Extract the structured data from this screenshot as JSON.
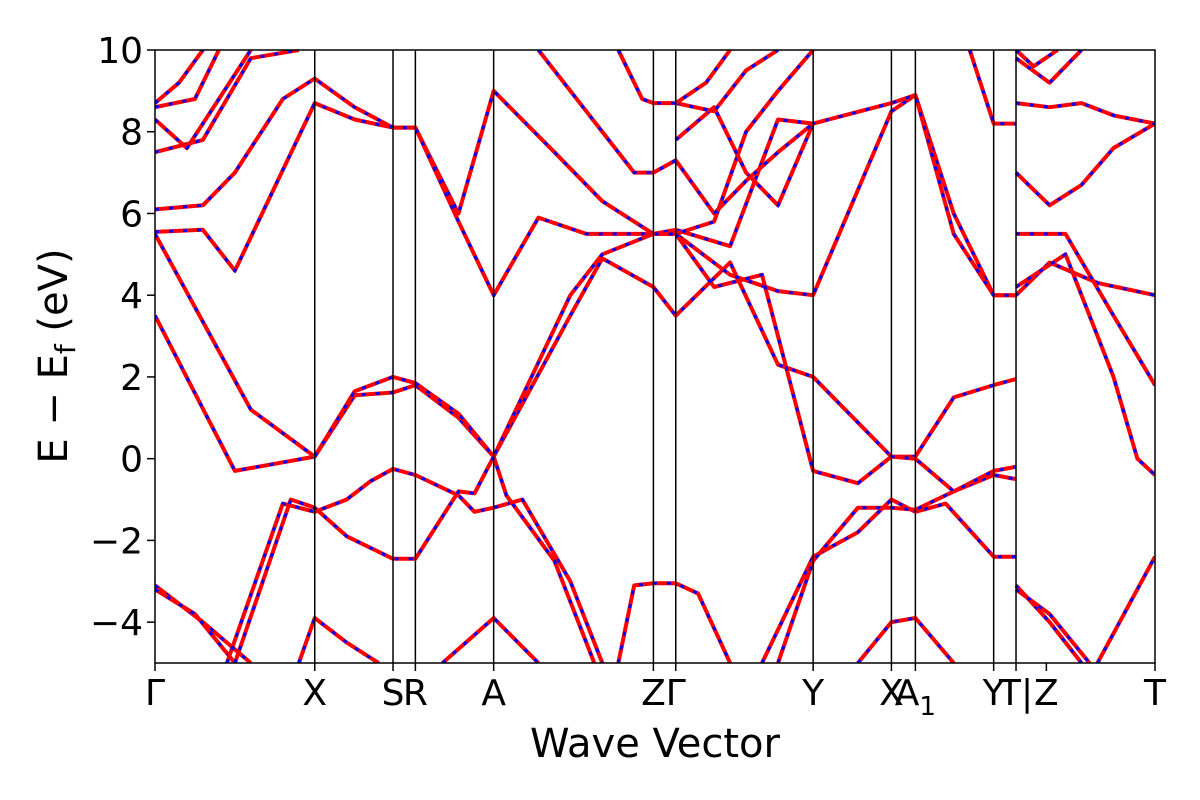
{
  "chart_data": {
    "type": "line",
    "title": "",
    "xlabel": "Wave Vector",
    "ylabel": "E − E",
    "ylabel_sub": "f",
    "ylabel_unit": " (eV)",
    "ylim": [
      -5,
      10
    ],
    "yticks": [
      -4,
      -2,
      0,
      2,
      4,
      6,
      8,
      10
    ],
    "ytick_labels": [
      "−4",
      "−2",
      "0",
      "2",
      "4",
      "6",
      "8",
      "10"
    ],
    "k_path_positions": [
      0,
      1,
      1.49,
      1.63,
      2.12,
      3.12,
      3.26,
      4.12,
      4.61,
      4.76,
      5.25,
      5.39,
      6.26
    ],
    "k_labels": [
      {
        "x": 0,
        "text": "Γ"
      },
      {
        "x": 1,
        "text": "X"
      },
      {
        "x": 1.49,
        "text": "S"
      },
      {
        "x": 1.63,
        "text": "R"
      },
      {
        "x": 2.12,
        "text": "A"
      },
      {
        "x": 3.12,
        "text": "Z"
      },
      {
        "x": 3.26,
        "text": "Γ"
      },
      {
        "x": 4.12,
        "text": "Y"
      },
      {
        "x": 4.61,
        "text": "X"
      },
      {
        "x": 4.76,
        "text": "A",
        "sub": "1"
      },
      {
        "x": 5.25,
        "text": "Y"
      },
      {
        "x": 5.39,
        "text": "T|"
      },
      {
        "x": 5.58,
        "text": "Z"
      },
      {
        "x": 6.26,
        "text": "T"
      }
    ],
    "colors": {
      "primary": "#ff0000",
      "overlay": "#0000ff",
      "frame": "#000000"
    },
    "legend": "none",
    "grid": false,
    "series": [
      {
        "values": [
          [
            0,
            3.5
          ],
          [
            0.5,
            -0.3
          ],
          [
            1,
            0.05
          ],
          [
            1.25,
            1.55
          ],
          [
            1.49,
            1.62
          ],
          [
            1.63,
            1.8
          ],
          [
            1.9,
            1.0
          ],
          [
            2.12,
            0.05
          ],
          [
            2.6,
            3.5
          ],
          [
            2.8,
            4.9
          ],
          [
            3.12,
            4.2
          ],
          [
            3.26,
            3.5
          ],
          [
            3.6,
            4.8
          ],
          [
            3.9,
            2.3
          ],
          [
            4.12,
            2.0
          ],
          [
            4.61,
            0.05
          ],
          [
            4.76,
            0.05
          ],
          [
            5.0,
            1.5
          ],
          [
            5.25,
            1.8
          ],
          [
            5.39,
            1.95
          ]
        ]
      },
      {
        "values": [
          [
            0,
            5.5
          ],
          [
            0.6,
            1.2
          ],
          [
            1,
            0.05
          ],
          [
            1.25,
            1.65
          ],
          [
            1.49,
            2.0
          ],
          [
            1.63,
            1.85
          ],
          [
            1.9,
            1.1
          ],
          [
            2.12,
            0.05
          ],
          [
            2.6,
            4.0
          ],
          [
            2.8,
            5.0
          ],
          [
            3.12,
            5.5
          ],
          [
            3.26,
            5.5
          ],
          [
            3.6,
            4.5
          ],
          [
            3.9,
            4.1
          ],
          [
            4.12,
            4.0
          ],
          [
            4.61,
            8.5
          ],
          [
            4.76,
            8.9
          ],
          [
            5.0,
            6.0
          ],
          [
            5.25,
            4.0
          ],
          [
            5.39,
            4.0
          ],
          [
            5.6,
            4.8
          ],
          [
            5.9,
            4.3
          ],
          [
            6.26,
            4.0
          ]
        ]
      },
      {
        "values": [
          [
            0,
            5.55
          ],
          [
            0.3,
            5.6
          ],
          [
            0.5,
            4.6
          ],
          [
            1,
            8.7
          ],
          [
            1.25,
            8.3
          ],
          [
            1.49,
            8.1
          ],
          [
            1.63,
            8.1
          ],
          [
            1.9,
            6.0
          ],
          [
            2.12,
            9.0
          ],
          [
            2.5,
            7.5
          ],
          [
            2.8,
            6.3
          ],
          [
            3.12,
            5.5
          ],
          [
            3.26,
            5.6
          ],
          [
            3.6,
            5.2
          ],
          [
            3.9,
            8.3
          ],
          [
            4.12,
            8.2
          ],
          [
            4.61,
            8.7
          ],
          [
            4.76,
            8.9
          ],
          [
            5.0,
            5.5
          ],
          [
            5.25,
            4.0
          ],
          [
            5.39,
            4.0
          ]
        ]
      },
      {
        "values": [
          [
            0,
            6.1
          ],
          [
            0.3,
            6.2
          ],
          [
            0.5,
            7.0
          ],
          [
            0.8,
            8.8
          ],
          [
            1,
            9.3
          ],
          [
            1.25,
            8.6
          ],
          [
            1.49,
            8.1
          ],
          [
            1.63,
            8.1
          ],
          [
            1.9,
            5.8
          ],
          [
            2.12,
            4.0
          ],
          [
            2.4,
            5.9
          ],
          [
            2.7,
            5.5
          ],
          [
            3.12,
            5.5
          ],
          [
            3.26,
            5.5
          ],
          [
            3.5,
            5.8
          ],
          [
            3.7,
            8.0
          ],
          [
            3.9,
            9.0
          ],
          [
            4.12,
            10.0
          ]
        ]
      },
      {
        "values": [
          [
            0,
            7.5
          ],
          [
            0.3,
            7.8
          ],
          [
            0.6,
            9.8
          ],
          [
            0.9,
            10.0
          ]
        ]
      },
      {
        "values": [
          [
            0,
            8.3
          ],
          [
            0.2,
            7.6
          ],
          [
            0.4,
            8.8
          ],
          [
            0.6,
            10.0
          ]
        ]
      },
      {
        "values": [
          [
            0,
            8.6
          ],
          [
            0.25,
            8.8
          ],
          [
            0.4,
            10.0
          ]
        ]
      },
      {
        "values": [
          [
            0,
            8.7
          ],
          [
            0.15,
            9.2
          ],
          [
            0.3,
            10.0
          ]
        ]
      },
      {
        "values": [
          [
            0,
            -3.1
          ],
          [
            0.3,
            -4.0
          ],
          [
            0.6,
            -5.0
          ]
        ]
      },
      {
        "values": [
          [
            0,
            -3.2
          ],
          [
            0.25,
            -3.8
          ],
          [
            0.5,
            -5.0
          ]
        ]
      },
      {
        "values": [
          [
            0.45,
            -5.0
          ],
          [
            0.8,
            -1.1
          ],
          [
            1,
            -1.3
          ],
          [
            1.2,
            -1.0
          ],
          [
            1.35,
            -0.55
          ],
          [
            1.49,
            -0.25
          ],
          [
            1.63,
            -0.4
          ],
          [
            1.9,
            -0.9
          ],
          [
            2.0,
            -1.3
          ],
          [
            2.12,
            -1.2
          ],
          [
            2.3,
            -1.0
          ],
          [
            2.6,
            -3.0
          ],
          [
            2.8,
            -5.0
          ]
        ]
      },
      {
        "values": [
          [
            0.5,
            -5.0
          ],
          [
            0.85,
            -1.0
          ],
          [
            1,
            -1.2
          ],
          [
            1.2,
            -1.9
          ],
          [
            1.49,
            -2.45
          ],
          [
            1.63,
            -2.45
          ],
          [
            1.9,
            -0.8
          ],
          [
            2.0,
            -0.85
          ],
          [
            2.12,
            0.05
          ],
          [
            2.2,
            -0.9
          ],
          [
            2.5,
            -2.5
          ],
          [
            2.75,
            -5.0
          ]
        ]
      },
      {
        "values": [
          [
            0.9,
            -5.0
          ],
          [
            1,
            -3.9
          ],
          [
            1.2,
            -4.5
          ],
          [
            1.4,
            -5.0
          ]
        ]
      },
      {
        "values": [
          [
            1.8,
            -5.0
          ],
          [
            2.12,
            -3.9
          ],
          [
            2.4,
            -5.0
          ]
        ]
      },
      {
        "values": [
          [
            2.9,
            -5.0
          ],
          [
            3.0,
            -3.1
          ],
          [
            3.12,
            -3.05
          ],
          [
            3.26,
            -3.05
          ],
          [
            3.4,
            -3.3
          ],
          [
            3.6,
            -5.0
          ]
        ]
      },
      {
        "values": [
          [
            3.8,
            -5.0
          ],
          [
            4.12,
            -2.4
          ],
          [
            4.4,
            -1.8
          ],
          [
            4.61,
            -1.0
          ],
          [
            4.76,
            -1.3
          ],
          [
            4.95,
            -1.1
          ],
          [
            5.25,
            -2.4
          ],
          [
            5.39,
            -2.4
          ]
        ]
      },
      {
        "values": [
          [
            3.9,
            -5.0
          ],
          [
            4.12,
            -2.5
          ],
          [
            4.4,
            -1.2
          ],
          [
            4.61,
            -1.2
          ],
          [
            4.76,
            -1.25
          ],
          [
            5.0,
            -0.8
          ],
          [
            5.25,
            -0.4
          ],
          [
            5.39,
            -0.5
          ]
        ]
      },
      {
        "values": [
          [
            4.4,
            -5.0
          ],
          [
            4.61,
            -4.0
          ],
          [
            4.76,
            -3.9
          ],
          [
            5.0,
            -5.0
          ]
        ]
      },
      {
        "values": [
          [
            3.26,
            5.5
          ],
          [
            3.5,
            4.2
          ],
          [
            3.8,
            4.5
          ],
          [
            4.0,
            1.5
          ],
          [
            4.12,
            -0.3
          ],
          [
            4.4,
            -0.6
          ],
          [
            4.61,
            0.05
          ],
          [
            4.76,
            0.0
          ],
          [
            5.0,
            -0.8
          ],
          [
            5.25,
            -0.3
          ],
          [
            5.39,
            -0.2
          ]
        ]
      },
      {
        "values": [
          [
            3.26,
            7.8
          ],
          [
            3.5,
            8.6
          ],
          [
            3.7,
            7.0
          ],
          [
            3.9,
            6.2
          ],
          [
            4.12,
            8.2
          ]
        ]
      },
      {
        "values": [
          [
            3.26,
            8.7
          ],
          [
            3.5,
            8.5
          ],
          [
            3.7,
            9.5
          ],
          [
            3.9,
            10.0
          ]
        ]
      },
      {
        "values": [
          [
            2.9,
            10.0
          ],
          [
            3.05,
            8.8
          ],
          [
            3.12,
            8.7
          ],
          [
            3.26,
            8.7
          ],
          [
            3.45,
            9.2
          ],
          [
            3.6,
            10.0
          ]
        ]
      },
      {
        "values": [
          [
            2.4,
            10.0
          ],
          [
            2.7,
            8.5
          ],
          [
            3.0,
            7.0
          ],
          [
            3.12,
            7.0
          ],
          [
            3.26,
            7.3
          ],
          [
            3.5,
            6.0
          ],
          [
            3.7,
            6.8
          ],
          [
            3.9,
            7.5
          ],
          [
            4.12,
            8.2
          ]
        ]
      },
      {
        "values": [
          [
            5.1,
            10.0
          ],
          [
            5.25,
            8.2
          ],
          [
            5.39,
            8.2
          ]
        ]
      },
      {
        "values": [
          [
            5.39,
            -3.1
          ],
          [
            5.6,
            -4.0
          ],
          [
            5.8,
            -5.0
          ]
        ]
      },
      {
        "values": [
          [
            5.39,
            -3.2
          ],
          [
            5.6,
            -3.8
          ],
          [
            5.85,
            -5.0
          ]
        ]
      },
      {
        "values": [
          [
            5.9,
            -5.0
          ],
          [
            6.26,
            -2.4
          ]
        ]
      },
      {
        "values": [
          [
            5.39,
            4.2
          ],
          [
            5.7,
            5.0
          ],
          [
            6.0,
            2.0
          ],
          [
            6.15,
            0.0
          ],
          [
            6.26,
            -0.4
          ]
        ]
      },
      {
        "values": [
          [
            5.39,
            5.5
          ],
          [
            5.7,
            5.5
          ],
          [
            6.0,
            3.5
          ],
          [
            6.26,
            1.8
          ]
        ]
      },
      {
        "values": [
          [
            5.39,
            7.0
          ],
          [
            5.6,
            6.2
          ],
          [
            5.8,
            6.7
          ],
          [
            6.0,
            7.6
          ],
          [
            6.26,
            8.2
          ]
        ]
      },
      {
        "values": [
          [
            5.39,
            8.7
          ],
          [
            5.6,
            8.6
          ],
          [
            5.8,
            8.7
          ],
          [
            6.0,
            8.4
          ],
          [
            6.26,
            8.2
          ]
        ]
      },
      {
        "values": [
          [
            5.39,
            9.8
          ],
          [
            5.6,
            9.2
          ],
          [
            5.8,
            10.0
          ]
        ]
      },
      {
        "values": [
          [
            5.39,
            10.0
          ],
          [
            5.5,
            9.6
          ],
          [
            5.65,
            10.0
          ]
        ]
      }
    ]
  }
}
